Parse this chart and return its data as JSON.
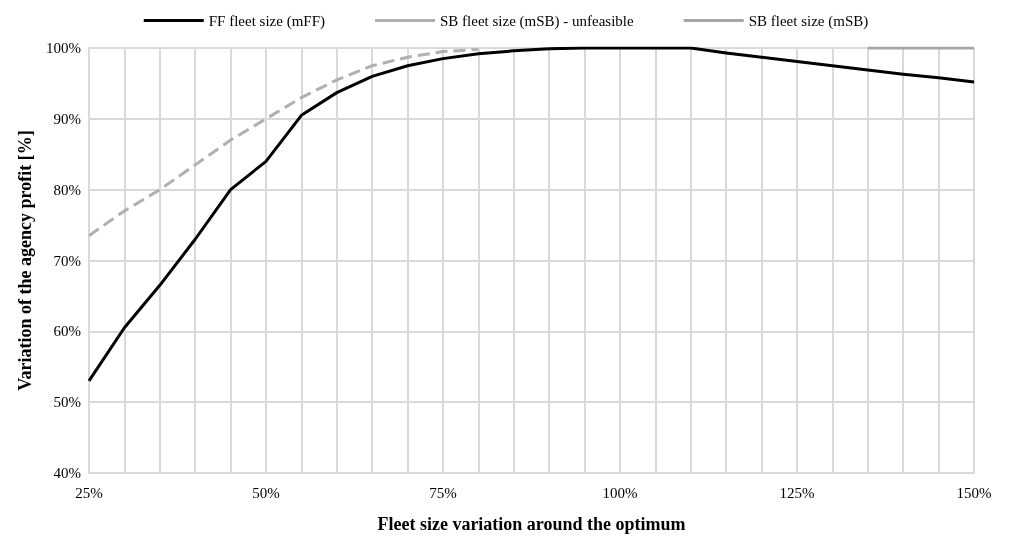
{
  "chart_data": {
    "type": "line",
    "xlabel": "Fleet size variation around the optimum",
    "ylabel": "Variation of the agency profit [%]",
    "xlim": [
      25,
      150
    ],
    "xticks": [
      {
        "value": 25,
        "label": "25%"
      },
      {
        "value": 30,
        "label": null
      },
      {
        "value": 35,
        "label": null
      },
      {
        "value": 40,
        "label": null
      },
      {
        "value": 45,
        "label": null
      },
      {
        "value": 50,
        "label": "50%"
      },
      {
        "value": 55,
        "label": null
      },
      {
        "value": 60,
        "label": null
      },
      {
        "value": 65,
        "label": null
      },
      {
        "value": 70,
        "label": null
      },
      {
        "value": 75,
        "label": "75%"
      },
      {
        "value": 80,
        "label": null
      },
      {
        "value": 85,
        "label": null
      },
      {
        "value": 90,
        "label": null
      },
      {
        "value": 95,
        "label": null
      },
      {
        "value": 100,
        "label": "100%"
      },
      {
        "value": 105,
        "label": null
      },
      {
        "value": 110,
        "label": null
      },
      {
        "value": 115,
        "label": null
      },
      {
        "value": 120,
        "label": null
      },
      {
        "value": 125,
        "label": "125%"
      },
      {
        "value": 130,
        "label": null
      },
      {
        "value": 135,
        "label": null
      },
      {
        "value": 140,
        "label": null
      },
      {
        "value": 145,
        "label": null
      },
      {
        "value": 150,
        "label": "150%"
      }
    ],
    "ylim": [
      40,
      100
    ],
    "yticks": [
      {
        "value": 40,
        "label": "40%"
      },
      {
        "value": 50,
        "label": "50%"
      },
      {
        "value": 60,
        "label": "60%"
      },
      {
        "value": 70,
        "label": "70%"
      },
      {
        "value": 80,
        "label": "80%"
      },
      {
        "value": 90,
        "label": "90%"
      },
      {
        "value": 100,
        "label": "100%"
      }
    ],
    "grid": true,
    "legend": "top",
    "marker": "none",
    "series": [
      {
        "name": "FF fleet size (mFF)",
        "color": "#000000",
        "line_style": "solid",
        "x": [
          25,
          30,
          35,
          40,
          45,
          50,
          55,
          60,
          65,
          70,
          75,
          80,
          85,
          90,
          95,
          100,
          105,
          110,
          115,
          120,
          125,
          130,
          135,
          140,
          145,
          150
        ],
        "values": [
          53,
          60.5,
          66.5,
          73,
          80,
          84,
          90.5,
          93.7,
          96,
          97.5,
          98.5,
          99.2,
          99.6,
          99.9,
          100,
          100,
          100,
          100,
          99.3,
          98.7,
          98.1,
          97.5,
          96.9,
          96.3,
          95.8,
          95.2
        ]
      },
      {
        "name": "SB fleet size (mSB) - unfeasible",
        "color": "#b0b0b0",
        "line_style": "dashed",
        "x": [
          25,
          30,
          35,
          40,
          45,
          50,
          55,
          60,
          65,
          70,
          75,
          80
        ],
        "values": [
          73.5,
          77,
          80,
          83.5,
          87,
          90,
          93,
          95.5,
          97.5,
          98.7,
          99.5,
          99.8
        ]
      },
      {
        "name": "SB fleet size (mSB)",
        "color": "#a6a6a6",
        "line_style": "solid",
        "x": [
          135,
          140,
          145,
          150
        ],
        "values": [
          100,
          100,
          100,
          100
        ]
      }
    ]
  }
}
